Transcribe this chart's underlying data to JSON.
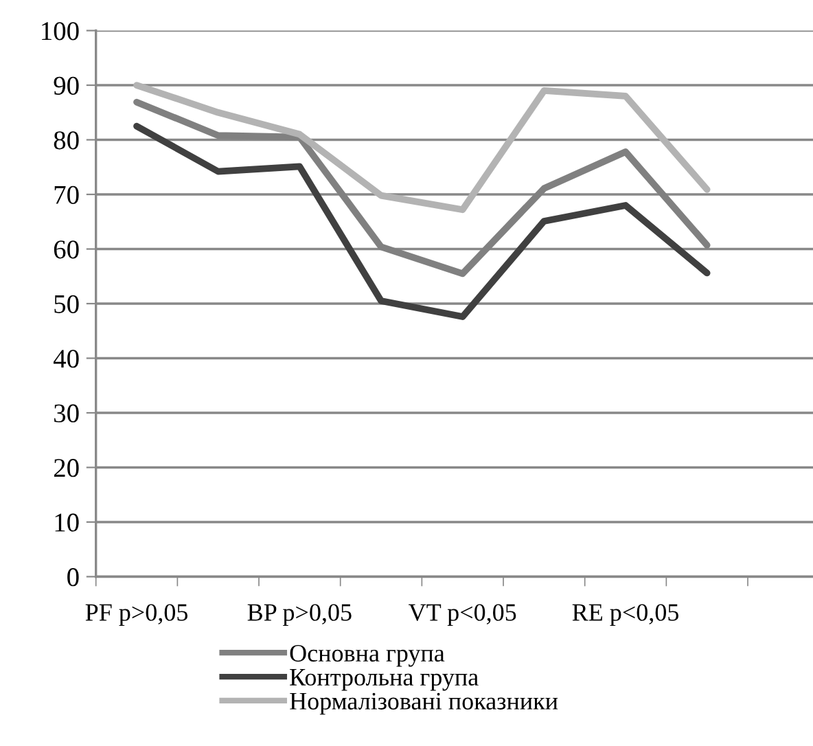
{
  "chart_data": {
    "type": "line",
    "categories": [
      "PF p>0,05",
      null,
      "BP p>0,05",
      null,
      "VT p<0,05",
      null,
      "RE p<0,05",
      null,
      null
    ],
    "series": [
      {
        "name": "Основна група",
        "color": "#808080",
        "values": [
          86.9,
          80.8,
          80.5,
          60.4,
          55.5,
          71.1,
          77.8,
          60.7,
          null
        ]
      },
      {
        "name": "Контрольна група",
        "color": "#404040",
        "values": [
          82.5,
          74.2,
          75.1,
          50.5,
          47.6,
          65.1,
          68.0,
          55.6,
          null
        ]
      },
      {
        "name": "Нормалізовані показники",
        "color": "#b3b3b3",
        "values": [
          90.0,
          85.0,
          81.0,
          69.8,
          67.2,
          89.0,
          88.0,
          70.9,
          null
        ]
      }
    ],
    "ylim": [
      0,
      100
    ],
    "yticks": [
      0,
      10,
      20,
      30,
      40,
      50,
      60,
      70,
      80,
      90,
      100
    ],
    "grid": "y",
    "legend": "bottom",
    "marker": "none",
    "line_style": "solid"
  }
}
